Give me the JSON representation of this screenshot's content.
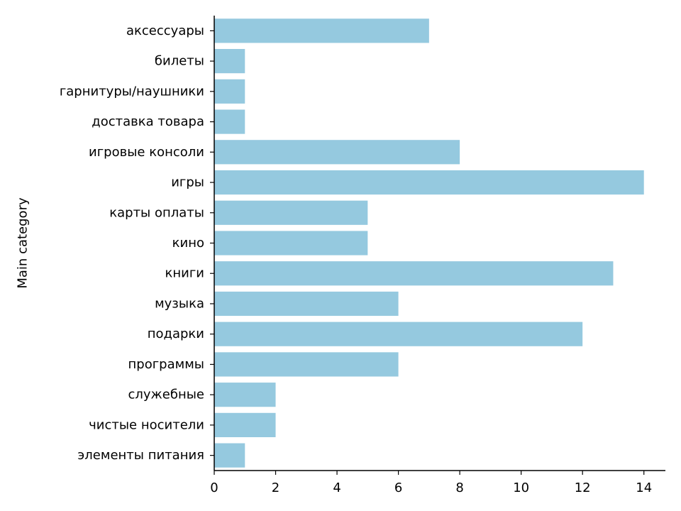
{
  "chart_data": {
    "type": "bar",
    "orientation": "horizontal",
    "title": "",
    "xlabel": "",
    "ylabel": "Main category",
    "categories": [
      "аксессуары",
      "билеты",
      "гарнитуры/наушники",
      "доставка товара",
      "игровые консоли",
      "игры",
      "карты оплаты",
      "кино",
      "книги",
      "музыка",
      "подарки",
      "программы",
      "служебные",
      "чистые носители",
      "элементы питания"
    ],
    "values": [
      7,
      1,
      1,
      1,
      8,
      14,
      5,
      5,
      13,
      6,
      12,
      6,
      2,
      2,
      1
    ],
    "xlim": [
      0,
      14.7
    ],
    "xticks": [
      0,
      2,
      4,
      6,
      8,
      10,
      12,
      14
    ],
    "bar_color": "#95c9df",
    "grid": false,
    "legend": false
  }
}
